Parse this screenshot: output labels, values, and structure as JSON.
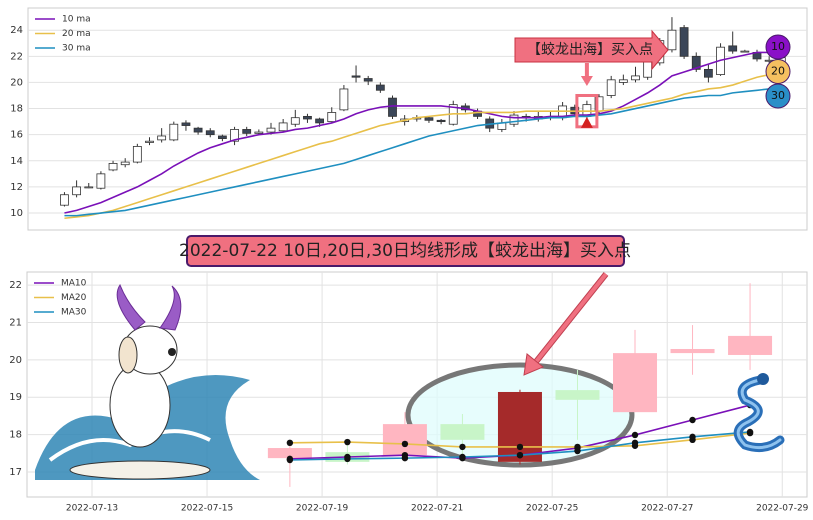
{
  "chart_data": [
    {
      "type": "candlestick",
      "open": [
        10.6,
        11.4,
        12.0,
        11.9,
        13.3,
        13.7,
        13.9,
        15.4,
        15.6,
        15.6,
        16.9,
        16.5,
        16.3,
        15.9,
        15.5,
        16.4,
        16.1,
        16.2,
        16.3,
        16.8,
        17.4,
        17.2,
        17.0,
        17.9,
        20.5,
        20.3,
        19.8,
        18.8,
        17.0,
        17.2,
        17.3,
        17.1,
        16.8,
        18.2,
        17.8,
        17.2,
        16.4,
        16.8,
        17.4,
        17.2,
        17.4,
        17.3,
        18.1,
        17.4,
        17.8,
        19.0,
        20.0,
        20.2,
        20.4,
        21.5,
        22.5,
        24.2,
        22.0,
        21.0,
        20.6,
        22.8,
        22.4,
        22.3,
        21.7,
        21.6
      ],
      "high": [
        11.6,
        12.5,
        12.3,
        13.2,
        14.0,
        14.2,
        15.3,
        15.8,
        16.5,
        17.0,
        17.1,
        16.6,
        16.5,
        16.0,
        16.6,
        16.6,
        16.4,
        16.9,
        17.2,
        17.9,
        17.6,
        17.3,
        18.1,
        19.8,
        21.3,
        20.5,
        20.0,
        19.0,
        17.5,
        17.5,
        17.4,
        17.2,
        18.6,
        18.4,
        18.0,
        17.4,
        17.2,
        17.8,
        17.6,
        17.8,
        17.8,
        18.5,
        18.3,
        18.6,
        19.1,
        20.5,
        20.6,
        21.2,
        22.3,
        23.4,
        25.0,
        24.4,
        22.3,
        21.4,
        23.0,
        23.9,
        22.5,
        22.5,
        22.0,
        22.0
      ],
      "low": [
        10.5,
        11.2,
        11.9,
        11.8,
        13.2,
        13.5,
        13.8,
        15.2,
        15.4,
        15.5,
        16.3,
        16.0,
        15.8,
        15.5,
        15.2,
        15.9,
        16.0,
        16.0,
        16.2,
        16.6,
        16.9,
        16.6,
        16.9,
        17.8,
        20.0,
        19.8,
        19.2,
        17.2,
        16.7,
        17.0,
        16.9,
        16.8,
        16.7,
        17.7,
        17.2,
        16.2,
        16.2,
        16.6,
        17.0,
        17.0,
        17.1,
        17.1,
        17.4,
        17.2,
        17.6,
        18.8,
        19.8,
        20.0,
        20.2,
        21.3,
        22.3,
        21.8,
        20.8,
        20.0,
        20.5,
        22.2,
        22.3,
        21.6,
        21.5,
        21.4
      ],
      "close": [
        11.4,
        12.0,
        12.0,
        13.0,
        13.8,
        13.9,
        15.1,
        15.5,
        15.9,
        16.8,
        16.7,
        16.2,
        16.0,
        15.7,
        16.4,
        16.1,
        16.2,
        16.5,
        16.9,
        17.3,
        17.2,
        16.9,
        17.7,
        19.5,
        20.4,
        20.1,
        19.4,
        17.4,
        17.2,
        17.3,
        17.1,
        17.0,
        18.3,
        17.9,
        17.4,
        16.5,
        16.9,
        17.5,
        17.3,
        17.4,
        17.3,
        18.2,
        17.6,
        18.3,
        18.9,
        20.2,
        20.2,
        20.5,
        21.6,
        23.2,
        24.0,
        22.0,
        21.0,
        20.4,
        22.7,
        22.4,
        22.4,
        21.8,
        21.7,
        21.9
      ],
      "up_color": "#ffffff",
      "down_color": "#3b4658",
      "edge_color": "#333333",
      "series": [
        {
          "name": "10 ma",
          "color": "#7a10b8",
          "end_label": "10",
          "label_fill": "#8a10c8",
          "values": [
            10.0,
            10.2,
            10.5,
            10.8,
            11.2,
            11.6,
            12.0,
            12.5,
            13.0,
            13.6,
            14.1,
            14.6,
            15.0,
            15.3,
            15.6,
            15.8,
            16.0,
            16.1,
            16.2,
            16.4,
            16.5,
            16.7,
            16.9,
            17.2,
            17.6,
            17.9,
            18.1,
            18.2,
            18.2,
            18.2,
            18.2,
            18.2,
            18.1,
            18.0,
            17.8,
            17.6,
            17.4,
            17.3,
            17.3,
            17.3,
            17.4,
            17.4,
            17.5,
            17.5,
            17.6,
            17.8,
            18.2,
            18.7,
            19.2,
            19.8,
            20.5,
            20.8,
            21.1,
            21.4,
            21.7,
            21.9,
            22.1,
            22.3,
            22.3,
            22.2
          ]
        },
        {
          "name": "20 ma",
          "color": "#e8c04a",
          "end_label": "20",
          "label_fill": "#f5c060",
          "values": [
            9.6,
            9.7,
            9.8,
            10.0,
            10.2,
            10.5,
            10.8,
            11.1,
            11.4,
            11.7,
            12.0,
            12.3,
            12.6,
            12.9,
            13.2,
            13.5,
            13.8,
            14.1,
            14.4,
            14.7,
            15.0,
            15.3,
            15.5,
            15.8,
            16.1,
            16.4,
            16.7,
            16.9,
            17.1,
            17.3,
            17.4,
            17.5,
            17.6,
            17.6,
            17.7,
            17.7,
            17.7,
            17.7,
            17.8,
            17.8,
            17.8,
            17.8,
            17.8,
            17.8,
            17.8,
            17.9,
            18.0,
            18.2,
            18.4,
            18.6,
            18.8,
            19.1,
            19.3,
            19.5,
            19.6,
            19.8,
            20.1,
            20.4,
            20.6,
            20.8
          ]
        },
        {
          "name": "30 ma",
          "color": "#1f8fc0",
          "end_label": "30",
          "label_fill": "#2a8fc8",
          "values": [
            9.8,
            9.8,
            9.9,
            10.0,
            10.1,
            10.2,
            10.4,
            10.6,
            10.8,
            11.0,
            11.2,
            11.4,
            11.6,
            11.8,
            12.0,
            12.2,
            12.4,
            12.6,
            12.8,
            13.0,
            13.2,
            13.4,
            13.6,
            13.8,
            14.1,
            14.4,
            14.7,
            15.0,
            15.3,
            15.6,
            15.9,
            16.1,
            16.3,
            16.5,
            16.7,
            16.8,
            16.9,
            17.0,
            17.1,
            17.2,
            17.3,
            17.3,
            17.4,
            17.4,
            17.5,
            17.6,
            17.8,
            18.0,
            18.2,
            18.4,
            18.6,
            18.8,
            18.9,
            19.0,
            19.0,
            19.2,
            19.3,
            19.4,
            19.5,
            19.6
          ]
        }
      ],
      "ylim": [
        8.7,
        25.7
      ],
      "yticks": [
        10,
        12,
        14,
        16,
        18,
        20,
        22,
        24
      ],
      "grid": true,
      "legend": "upper left",
      "annotation": {
        "text": "【蛟龙出海】买入点",
        "index": 43,
        "marker_value": 16.9
      }
    },
    {
      "type": "candlestick",
      "x": [
        0,
        1,
        2,
        3,
        4,
        5,
        6,
        7,
        8
      ],
      "open": [
        17.37,
        17.53,
        17.45,
        18.28,
        17.27,
        19.19,
        18.6,
        20.18,
        20.13
      ],
      "high": [
        17.7,
        17.72,
        18.6,
        18.55,
        19.2,
        19.73,
        20.8,
        20.93,
        22.05
      ],
      "low": [
        16.6,
        17.2,
        17.3,
        17.4,
        17.2,
        17.86,
        18.6,
        19.6,
        19.73
      ],
      "close": [
        17.64,
        17.27,
        18.28,
        17.86,
        19.14,
        18.93,
        20.18,
        20.29,
        20.64
      ],
      "up_color": "#ffb6c1",
      "down_color": "#c8f5c8",
      "highlight_index": 4,
      "highlight_color": "#a52a2a",
      "markers": true,
      "series": [
        {
          "name": "MA10",
          "color": "#7a10b8",
          "values": [
            17.35,
            17.4,
            17.45,
            17.37,
            17.45,
            17.64,
            17.99,
            18.39,
            18.79
          ]
        },
        {
          "name": "MA20",
          "color": "#e8c04a",
          "values": [
            17.78,
            17.8,
            17.75,
            17.67,
            17.67,
            17.67,
            17.7,
            17.86,
            18.04
          ]
        },
        {
          "name": "MA30",
          "color": "#1f8fc0",
          "values": [
            17.32,
            17.35,
            17.37,
            17.4,
            17.45,
            17.56,
            17.78,
            17.94,
            18.07
          ]
        }
      ],
      "xlim": [
        -4.57,
        8.99
      ],
      "xticks": [
        {
          "value": -3.44,
          "label": "2022-07-13"
        },
        {
          "value": -1.44,
          "label": "2022-07-15"
        },
        {
          "value": 0.56,
          "label": "2022-07-19"
        },
        {
          "value": 2.56,
          "label": "2022-07-21"
        },
        {
          "value": 4.56,
          "label": "2022-07-25"
        },
        {
          "value": 6.56,
          "label": "2022-07-27"
        },
        {
          "value": 8.56,
          "label": "2022-07-29"
        }
      ],
      "ylim": [
        16.33,
        22.35
      ],
      "yticks": [
        17,
        18,
        19,
        20,
        21,
        22
      ],
      "grid": true,
      "legend": "upper left"
    }
  ],
  "banner": "2022-07-22 10日,20日,30日均线形成【蛟龙出海】买入点"
}
